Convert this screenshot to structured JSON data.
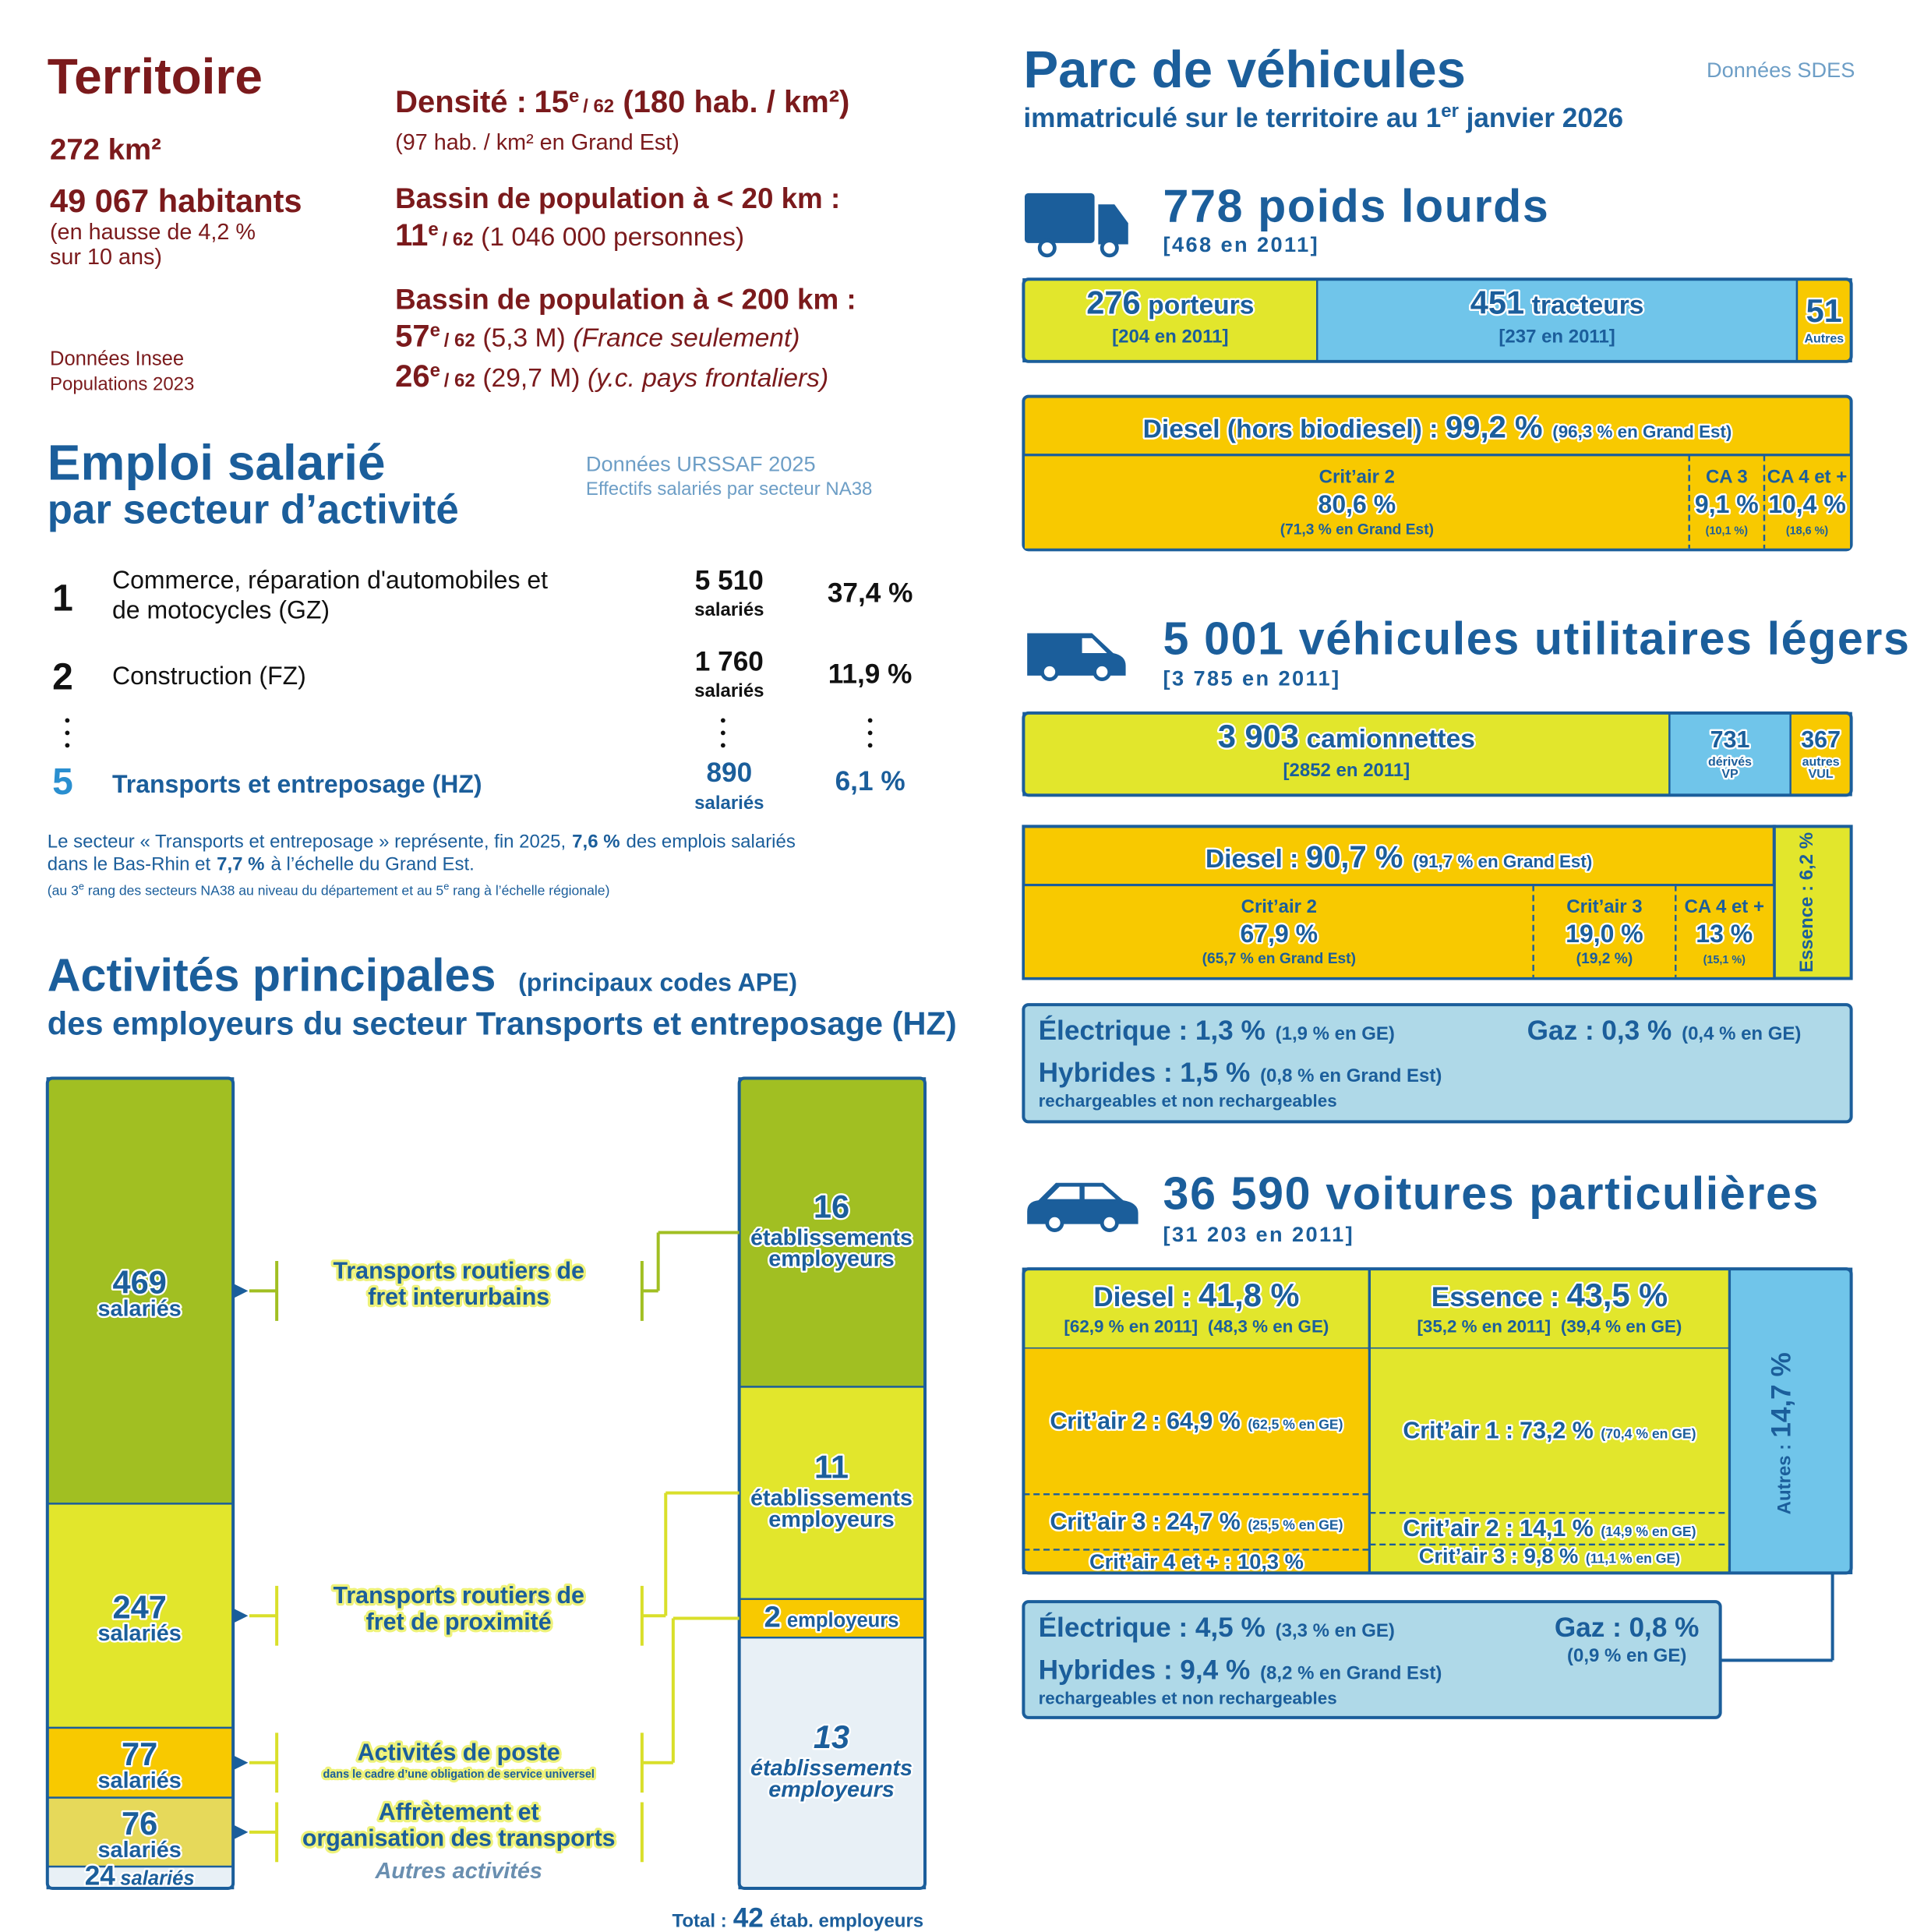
{
  "territoire": {
    "title": "Territoire",
    "area": "272 km²",
    "population": "49 067 habitants",
    "population_note": [
      "(en hausse de 4,2 %",
      "sur 10 ans)"
    ],
    "source": [
      "Données Insee",
      "Populations 2023"
    ],
    "density": {
      "label": "Densité :",
      "rank": "15",
      "sup": "e",
      "of": "/ 62",
      "value": "(180 hab. / km²)",
      "note": "(97 hab. / km² en Grand Est)"
    },
    "basins": [
      {
        "label": "Bassin de population à < 20 km :",
        "lines": [
          {
            "rank": "11",
            "sup": "e",
            "of": "/ 62",
            "value": "(1 046 000 personnes)"
          }
        ]
      },
      {
        "label": "Bassin de population à < 200 km :",
        "lines": [
          {
            "rank": "57",
            "sup": "e",
            "of": "/ 62",
            "value": "(5,3 M)",
            "qualifier": "(France seulement)"
          },
          {
            "rank": "26",
            "sup": "e",
            "of": "/ 62",
            "value": "(29,7 M)",
            "qualifier": "(y.c. pays frontaliers)"
          }
        ]
      }
    ]
  },
  "emploi": {
    "title": "Emploi salarié",
    "subtitle": "par secteur d’activité",
    "source": [
      "Données URSSAF 2025",
      "Effectifs salariés par secteur NA38"
    ],
    "rows": [
      {
        "rank": "1",
        "sector": [
          "Commerce, réparation d'automobiles et",
          "de motocycles (GZ)"
        ],
        "count": "5 510",
        "unit": "salariés",
        "share": "37,4 %"
      },
      {
        "rank": "2",
        "sector": [
          "Construction (FZ)"
        ],
        "count": "1 760",
        "unit": "salariés",
        "share": "11,9 %"
      },
      {
        "rank": "5",
        "sector": [
          "Transports et entreposage (HZ)"
        ],
        "count": "890",
        "unit": "salariés",
        "share": "6,1 %"
      }
    ],
    "note": [
      [
        "Le secteur « Transports et entreposage » représente, fin 2025,",
        "7,6 %",
        "des emplois salariés"
      ],
      [
        "dans le Bas-Rhin et",
        "7,7 %",
        "à l’échelle du Grand Est."
      ],
      [
        "(au 3",
        "e",
        "rang des secteurs NA38 au niveau du département et au 5",
        "e",
        "rang à l’échelle régionale)"
      ]
    ]
  },
  "activites": {
    "title": "Activités principales",
    "codes": "(principaux codes APE)",
    "subtitle": "des employeurs du secteur Transports et entreposage (HZ)",
    "salaries": [
      {
        "value": 469,
        "unit": "salariés"
      },
      {
        "value": 247,
        "unit": "salariés"
      },
      {
        "value": 77,
        "unit": "salariés"
      },
      {
        "value": 76,
        "unit": "salariés"
      },
      {
        "value": 24,
        "unit": "salariés"
      }
    ],
    "etablissements": [
      {
        "value": 16,
        "unit": [
          "établissements",
          "employeurs"
        ]
      },
      {
        "value": 11,
        "unit": [
          "établissements",
          "employeurs"
        ]
      },
      {
        "value": 2,
        "unit": [
          "employeurs"
        ]
      },
      {
        "value": 13,
        "unit": [
          "établissements",
          "employeurs"
        ]
      }
    ],
    "labels": [
      {
        "lines": [
          "Transports routiers de",
          "fret interurbains"
        ]
      },
      {
        "lines": [
          "Transports routiers de",
          "fret de proximité"
        ]
      },
      {
        "lines": [
          "Activités de poste"
        ],
        "note": "dans le cadre d’une obligation de service universel"
      },
      {
        "lines": [
          "Affrètement et",
          "organisation des transports"
        ]
      },
      {
        "lines": [
          "Autres activités"
        ]
      }
    ],
    "total": {
      "label": "Total :",
      "value": 42,
      "unit": "étab. employeurs"
    }
  },
  "vehicules": {
    "title": "Parc de véhicules",
    "subtitle": [
      "immatriculé sur le territoire au 1",
      "er",
      "janvier 2026"
    ],
    "source": "Données SDES",
    "poids_lourds": {
      "title": "778 poids lourds",
      "ref": "[468 en 2011]",
      "segments": [
        {
          "value": 276,
          "label": "276",
          "name": "porteurs",
          "ref": "[204 en 2011]"
        },
        {
          "value": 451,
          "label": "451",
          "name": "tracteurs",
          "ref": "[237 en 2011]"
        },
        {
          "value": 51,
          "label": "51",
          "name": [
            "Autres"
          ]
        }
      ],
      "diesel": {
        "label": "Diesel (hors biodiesel) :",
        "pct": "99,2 %",
        "ge": "(96,3 % en Grand Est)",
        "critair": [
          {
            "value": 80.6,
            "name": "Crit’air 2",
            "label": "80,6 %",
            "ge": "(71,3 % en Grand Est)"
          },
          {
            "value": 9.1,
            "name": "CA 3",
            "label": "9,1 %",
            "ge": "(10,1 %)"
          },
          {
            "value": 10.4,
            "name": "CA 4 et +",
            "label": "10,4 %",
            "ge": "(18,6 %)"
          }
        ]
      }
    },
    "vul": {
      "title": "5 001 véhicules utilitaires légers",
      "ref": "[3 785 en 2011]",
      "segments": [
        {
          "value": 3903,
          "label": "3 903",
          "name": "camionnettes",
          "ref": "[2852 en 2011]"
        },
        {
          "value": 731,
          "label": "731",
          "name": [
            "dérivés",
            "VP"
          ]
        },
        {
          "value": 367,
          "label": "367",
          "name": [
            "autres",
            "VUL"
          ]
        }
      ],
      "diesel": {
        "value": 90.7,
        "label": "Diesel :",
        "pct": "90,7 %",
        "ge": "(91,7 % en Grand Est)",
        "critair": [
          {
            "value": 67.9,
            "name": "Crit’air 2",
            "label": "67,9 %",
            "ge": "(65,7 % en Grand Est)"
          },
          {
            "value": 19.0,
            "name": "Crit’air 3",
            "label": "19,0 %",
            "ge": "(19,2 %)"
          },
          {
            "value": 13,
            "name": "CA 4 et +",
            "label": "13 %",
            "ge": "(15,1 %)"
          }
        ]
      },
      "essence": "Essence : 6,2 %",
      "autres": {
        "electrique": [
          "Électrique :",
          "1,3 %",
          "(1,9 % en GE)"
        ],
        "gaz": [
          "Gaz :",
          "0,3 %",
          "(0,4 % en GE)"
        ],
        "hybrides": [
          "Hybrides :",
          "1,5 %",
          "(0,8 % en Grand Est)"
        ],
        "hybrides_note": "rechargeables et non rechargeables"
      }
    },
    "vp": {
      "title": "36 590 voitures particulières",
      "ref": "[31 203 en 2011]",
      "fuels": [
        {
          "value": 41.8,
          "label": "Diesel :",
          "pct": "41,8 %",
          "ref": "[62,9 % en 2011]",
          "ge": "(48,3 % en GE)",
          "critair": [
            {
              "value": 64.9,
              "label": "Crit’air 2 :",
              "pct": "64,9 %",
              "ge": "(62,5 % en GE)"
            },
            {
              "value": 24.7,
              "label": "Crit’air 3 :",
              "pct": "24,7 %",
              "ge": "(25,5 % en GE)"
            },
            {
              "value": 10.3,
              "label": "Crit’air 4 et + :",
              "pct": "10,3 %"
            }
          ]
        },
        {
          "value": 43.5,
          "label": "Essence :",
          "pct": "43,5 %",
          "ref": "[35,2 % en 2011]",
          "ge": "(39,4 % en GE)",
          "critair": [
            {
              "value": 73.2,
              "label": "Crit’air 1 :",
              "pct": "73,2 %",
              "ge": "(70,4 % en GE)"
            },
            {
              "value": 14.1,
              "label": "Crit’air 2 :",
              "pct": "14,1 %",
              "ge": "(14,9 % en GE)"
            },
            {
              "value": 9.8,
              "label": "Crit’air 3 :",
              "pct": "9,8 %",
              "ge": "(11,1 % en GE)"
            }
          ]
        }
      ],
      "autres": {
        "value": 14.7,
        "label": "Autres :",
        "pct": "14,7 %"
      },
      "alternatives": {
        "electrique": [
          "Électrique :",
          "4,5 %",
          "(3,3 % en GE)"
        ],
        "gaz": [
          "Gaz :",
          "0,8 %",
          "(0,9 % en GE)"
        ],
        "hybrides": [
          "Hybrides :",
          "9,4 %",
          "(8,2 % en Grand Est)"
        ],
        "hybrides_note": "rechargeables et non rechargeables"
      }
    }
  }
}
